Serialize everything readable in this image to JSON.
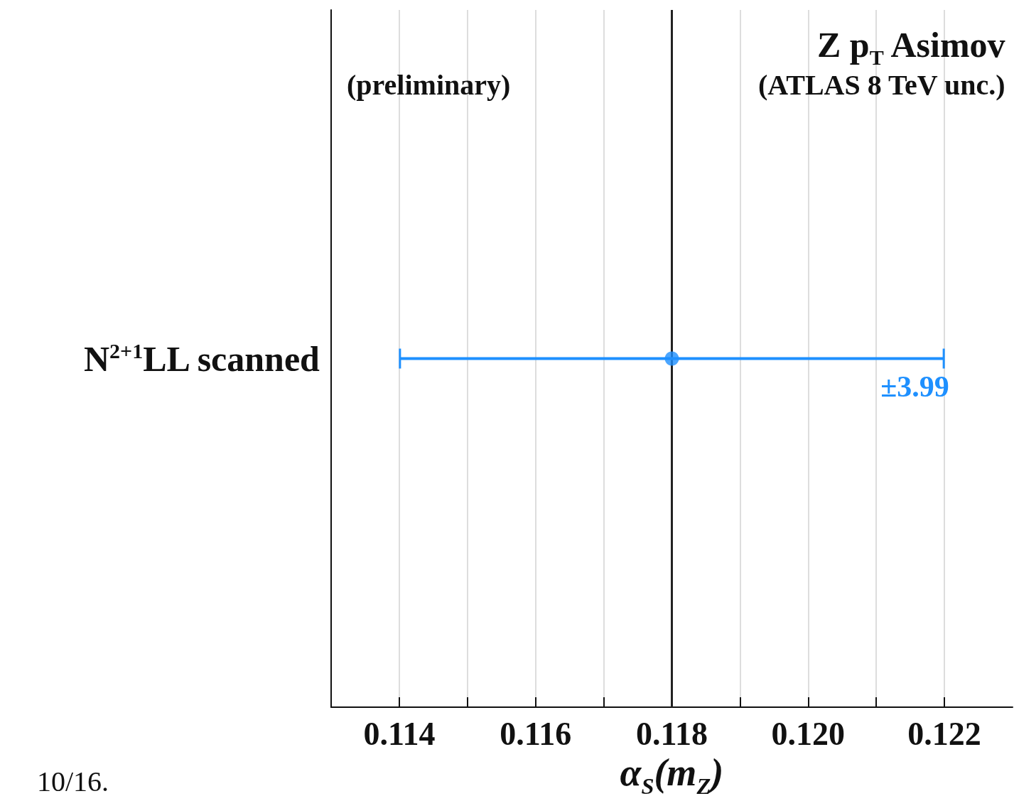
{
  "chart_data": {
    "type": "scatter",
    "orientation": "horizontal",
    "categories": [
      "N$^{2+1}$LL scanned"
    ],
    "series": [
      {
        "color": "#1e90ff",
        "values": [
          0.118
        ],
        "errors": [
          0.00399
        ]
      }
    ],
    "xlabel": "α$_{S}$(m$_{Z}$)",
    "xlim": [
      0.113,
      0.123
    ],
    "xticks": [
      0.114,
      {
        "value": 0.115,
        "label": null
      },
      0.116,
      {
        "value": 0.117,
        "label": null
      },
      0.118,
      {
        "value": 0.119,
        "label": null
      },
      {
        "value": 0.12,
        "label": "0.120"
      },
      {
        "value": 0.121,
        "label": null
      },
      0.122
    ],
    "grid": "x",
    "marker": "circle",
    "ref_lines": [
      {
        "axis": "x",
        "value": 0.118,
        "color": "#222222"
      }
    ],
    "annotations": [
      "(preliminary)",
      "Z p$_{T}$ Asimov",
      "(ATLAS 8 TeV unc.)",
      "±3.99",
      "10/16."
    ]
  }
}
